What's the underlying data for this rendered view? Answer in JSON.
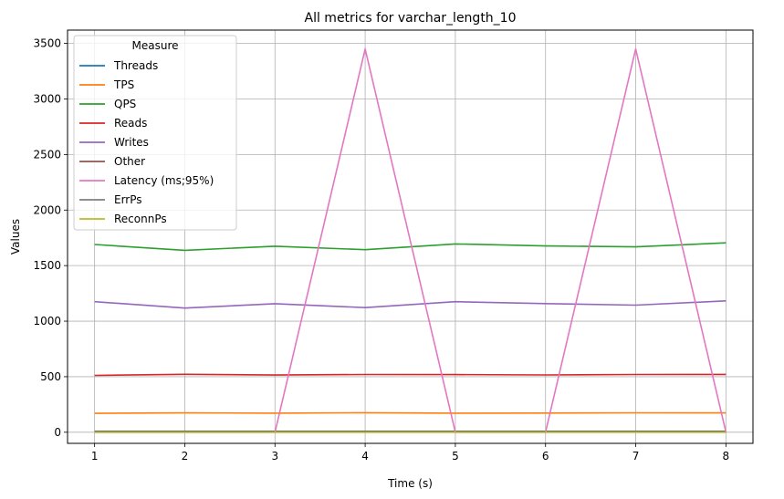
{
  "chart_data": {
    "type": "line",
    "title": "All metrics for varchar_length_10",
    "xlabel": "Time (s)",
    "ylabel": "Values",
    "x": [
      1,
      2,
      3,
      4,
      5,
      6,
      7,
      8
    ],
    "xlim": [
      0.7,
      8.3
    ],
    "ylim": [
      -100,
      3620
    ],
    "xticks": [
      "1",
      "2",
      "3",
      "4",
      "5",
      "6",
      "7",
      "8"
    ],
    "yticks": [
      0,
      500,
      1000,
      1500,
      2000,
      2500,
      3000,
      3500
    ],
    "grid": true,
    "legend": {
      "title": "Measure",
      "placement": "top-left"
    },
    "series": [
      {
        "name": "Threads",
        "color": "#1f77b4",
        "values": [
          8,
          8,
          8,
          8,
          8,
          8,
          8,
          8
        ]
      },
      {
        "name": "TPS",
        "color": "#ff7f0e",
        "values": [
          170,
          174,
          172,
          176,
          172,
          173,
          175,
          174
        ]
      },
      {
        "name": "QPS",
        "color": "#2ca02c",
        "values": [
          1690,
          1638,
          1675,
          1643,
          1695,
          1677,
          1669,
          1705
        ]
      },
      {
        "name": "Reads",
        "color": "#d62728",
        "values": [
          512,
          522,
          515,
          520,
          519,
          516,
          520,
          521
        ]
      },
      {
        "name": "Writes",
        "color": "#9467bd",
        "values": [
          1175,
          1118,
          1157,
          1122,
          1175,
          1158,
          1144,
          1183
        ]
      },
      {
        "name": "Other",
        "color": "#8c564b",
        "values": [
          5,
          5,
          5,
          5,
          5,
          5,
          5,
          5
        ]
      },
      {
        "name": "Latency (ms;95%)",
        "color": "#e377c2",
        "values": [
          0,
          0,
          0,
          3450,
          0,
          0,
          3450,
          0
        ]
      },
      {
        "name": "ErrPs",
        "color": "#7f7f7f",
        "values": [
          0,
          0,
          0,
          0,
          0,
          0,
          0,
          0
        ]
      },
      {
        "name": "ReconnPs",
        "color": "#bcbd22",
        "values": [
          0,
          0,
          0,
          0,
          0,
          0,
          0,
          0
        ]
      }
    ]
  }
}
